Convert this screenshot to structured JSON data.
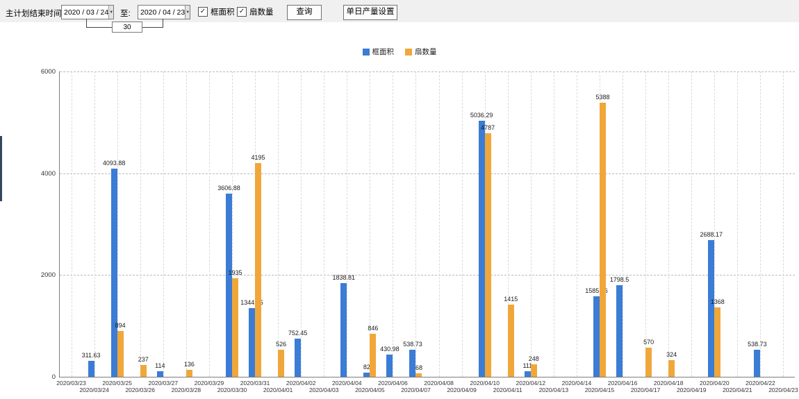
{
  "icons": {
    "check": "✓",
    "dropdown_arrow": "▼"
  },
  "toolbar": {
    "plan_end_label": "主计划结束时间:",
    "start_date": "2020 / 03 / 24",
    "to_label": "至:",
    "end_date": "2020 / 04 / 23",
    "days_between": "30",
    "checkboxes": [
      {
        "label": "框面积",
        "checked": true
      },
      {
        "label": "扇数量",
        "checked": true
      }
    ],
    "query_button": "查询",
    "daily_output_button": "单日产量设置"
  },
  "legend": {
    "items": [
      {
        "label": "框面积",
        "color": "#3b7cd6"
      },
      {
        "label": "扇数量",
        "color": "#f0a73a"
      }
    ]
  },
  "chart_data": {
    "type": "bar",
    "title": "",
    "xlabel": "",
    "ylabel": "",
    "ylim": [
      0,
      6000
    ],
    "yticks": [
      0,
      2000,
      4000,
      6000
    ],
    "grid": "dashed",
    "legend_position": "top-center",
    "categories": [
      "2020/03/23",
      "2020/03/24",
      "2020/03/25",
      "2020/03/26",
      "2020/03/27",
      "2020/03/28",
      "2020/03/29",
      "2020/03/30",
      "2020/03/31",
      "2020/04/01",
      "2020/04/02",
      "2020/04/03",
      "2020/04/04",
      "2020/04/05",
      "2020/04/06",
      "2020/04/07",
      "2020/04/08",
      "2020/04/09",
      "2020/04/10",
      "2020/04/11",
      "2020/04/12",
      "2020/04/13",
      "2020/04/14",
      "2020/04/15",
      "2020/04/16",
      "2020/04/17",
      "2020/04/18",
      "2020/04/19",
      "2020/04/20",
      "2020/04/21",
      "2020/04/22",
      "2020/04/23"
    ],
    "series": [
      {
        "name": "框面积",
        "color": "#3b7cd6",
        "values": [
          null,
          311.63,
          4093.88,
          null,
          114,
          null,
          null,
          3606.88,
          1344.95,
          null,
          752.45,
          null,
          1838.81,
          82,
          430.98,
          538.73,
          null,
          null,
          5036.29,
          null,
          111,
          null,
          null,
          1585.96,
          1798.5,
          null,
          null,
          null,
          2688.17,
          null,
          538.73,
          null
        ]
      },
      {
        "name": "扇数量",
        "color": "#f0a73a",
        "values": [
          null,
          null,
          894,
          237,
          null,
          136,
          null,
          1935,
          4195,
          526,
          null,
          null,
          null,
          846,
          null,
          68,
          null,
          null,
          4787,
          1415,
          248,
          null,
          null,
          5388,
          null,
          570,
          324,
          null,
          1368,
          null,
          null,
          null
        ]
      }
    ]
  }
}
